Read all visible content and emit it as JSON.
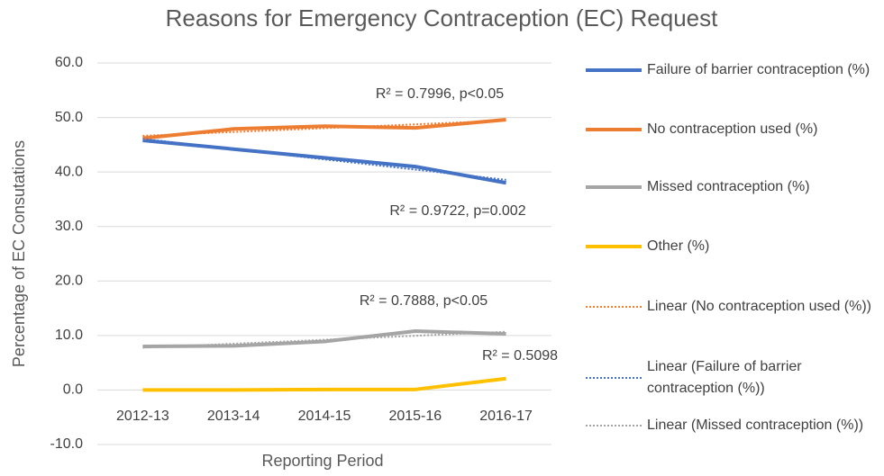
{
  "chart_data": {
    "type": "line",
    "title": "Reasons for Emergency Contraception (EC) Request",
    "x_label": "Reporting Period",
    "y_label": "Percentage of EC Consutations",
    "categories": [
      "2012-13",
      "2013-14",
      "2014-15",
      "2015-16",
      "2016-17"
    ],
    "series": [
      {
        "name": "Failure of barrier contraception (%)",
        "color": "#4472c4",
        "values": [
          45.8,
          44.2,
          42.6,
          41.0,
          38.0
        ]
      },
      {
        "name": "No contraception used (%)",
        "color": "#ed7d31",
        "values": [
          46.2,
          47.9,
          48.4,
          48.1,
          49.6
        ]
      },
      {
        "name": "Missed contraception (%)",
        "color": "#a5a5a5",
        "values": [
          8.0,
          8.1,
          8.9,
          10.8,
          10.3
        ]
      },
      {
        "name": "Other (%)",
        "color": "#ffc000",
        "values": [
          0.0,
          0.0,
          0.1,
          0.1,
          2.1
        ]
      }
    ],
    "trendlines": [
      {
        "name": "Linear (No contraception used (%))",
        "color": "#ed7d31",
        "values": [
          46.64,
          47.34,
          48.04,
          48.74,
          49.44
        ]
      },
      {
        "name": "Linear (Failure of barrier contraception (%))",
        "color": "#4472c4",
        "values": [
          46.08,
          44.2,
          42.32,
          40.44,
          38.56
        ]
      },
      {
        "name": "Linear (Missed contraception (%))",
        "color": "#a5a5a5",
        "values": [
          7.76,
          8.49,
          9.22,
          9.95,
          10.68
        ]
      }
    ],
    "annotations": [
      "R² = 0.7996, p<0.05",
      "R² = 0.9722, p=0.002",
      "R² = 0.7888, p<0.05",
      "R² = 0.5098"
    ],
    "ylim": [
      -10,
      60
    ],
    "yticks": [
      {
        "value": -10,
        "label": "-10.0"
      },
      {
        "value": 0,
        "label": "0.0"
      },
      {
        "value": 10,
        "label": "10.0"
      },
      {
        "value": 20,
        "label": "20.0"
      },
      {
        "value": 30,
        "label": "30.0"
      },
      {
        "value": 40,
        "label": "40.0"
      },
      {
        "value": 50,
        "label": "50.0"
      },
      {
        "value": 60,
        "label": "60.0"
      }
    ],
    "grid": true,
    "legend": "right"
  }
}
